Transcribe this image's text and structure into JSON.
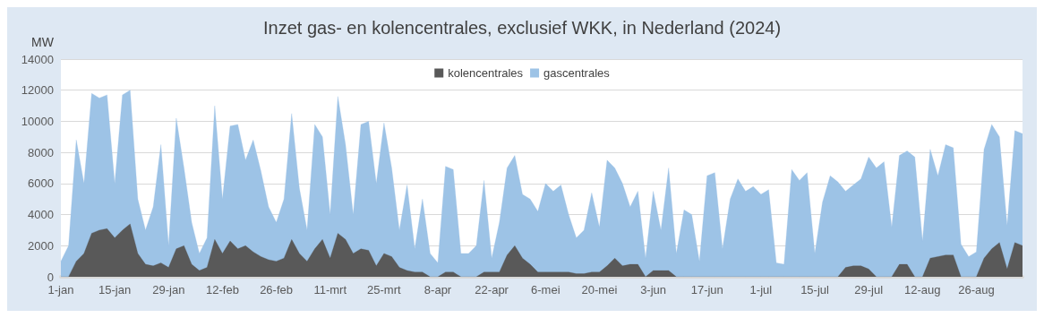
{
  "chart_data": {
    "type": "area",
    "title": "Inzet gas- en kolencentrales, exclusief WKK, in Nederland (2024)",
    "ylabel": "MW",
    "stacked": true,
    "legend": "top",
    "grid": "y",
    "x": [
      "2024-01-01",
      "2024-01-03",
      "2024-01-05",
      "2024-01-07",
      "2024-01-09",
      "2024-01-11",
      "2024-01-13",
      "2024-01-15",
      "2024-01-17",
      "2024-01-19",
      "2024-01-21",
      "2024-01-23",
      "2024-01-25",
      "2024-01-27",
      "2024-01-29",
      "2024-01-31",
      "2024-02-02",
      "2024-02-04",
      "2024-02-06",
      "2024-02-08",
      "2024-02-10",
      "2024-02-12",
      "2024-02-14",
      "2024-02-16",
      "2024-02-18",
      "2024-02-20",
      "2024-02-22",
      "2024-02-24",
      "2024-02-26",
      "2024-02-28",
      "2024-03-01",
      "2024-03-03",
      "2024-03-05",
      "2024-03-07",
      "2024-03-09",
      "2024-03-11",
      "2024-03-13",
      "2024-03-15",
      "2024-03-17",
      "2024-03-19",
      "2024-03-21",
      "2024-03-23",
      "2024-03-25",
      "2024-03-27",
      "2024-03-29",
      "2024-03-31",
      "2024-04-02",
      "2024-04-04",
      "2024-04-06",
      "2024-04-08",
      "2024-04-10",
      "2024-04-12",
      "2024-04-14",
      "2024-04-16",
      "2024-04-18",
      "2024-04-20",
      "2024-04-22",
      "2024-04-24",
      "2024-04-26",
      "2024-04-28",
      "2024-04-30",
      "2024-05-02",
      "2024-05-04",
      "2024-05-06",
      "2024-05-08",
      "2024-05-10",
      "2024-05-12",
      "2024-05-14",
      "2024-05-16",
      "2024-05-18",
      "2024-05-20",
      "2024-05-22",
      "2024-05-24",
      "2024-05-26",
      "2024-05-28",
      "2024-05-30",
      "2024-06-01",
      "2024-06-03",
      "2024-06-05",
      "2024-06-07",
      "2024-06-09",
      "2024-06-11",
      "2024-06-13",
      "2024-06-15",
      "2024-06-17",
      "2024-06-19",
      "2024-06-21",
      "2024-06-23",
      "2024-06-25",
      "2024-06-27",
      "2024-06-29",
      "2024-07-01",
      "2024-07-03",
      "2024-07-05",
      "2024-07-07",
      "2024-07-09",
      "2024-07-11",
      "2024-07-13",
      "2024-07-15",
      "2024-07-17",
      "2024-07-19",
      "2024-07-21",
      "2024-07-23",
      "2024-07-25",
      "2024-07-27",
      "2024-07-29",
      "2024-07-31",
      "2024-08-02",
      "2024-08-04",
      "2024-08-06",
      "2024-08-08",
      "2024-08-10",
      "2024-08-12",
      "2024-08-14",
      "2024-08-16",
      "2024-08-18",
      "2024-08-20",
      "2024-08-22",
      "2024-08-24",
      "2024-08-26",
      "2024-08-28",
      "2024-08-30",
      "2024-09-01",
      "2024-09-03",
      "2024-09-05",
      "2024-09-07"
    ],
    "series": [
      {
        "name": "kolencentrales",
        "color": "#595959",
        "values": [
          0,
          0,
          1000,
          1500,
          2800,
          3000,
          3100,
          2500,
          3000,
          3400,
          1500,
          800,
          700,
          900,
          600,
          1800,
          2000,
          800,
          400,
          600,
          2400,
          1500,
          2300,
          1800,
          2000,
          1600,
          1300,
          1100,
          1000,
          1200,
          2400,
          1500,
          1000,
          1800,
          2400,
          1200,
          2800,
          2400,
          1500,
          1800,
          1700,
          700,
          1500,
          1300,
          600,
          400,
          300,
          300,
          0,
          0,
          300,
          300,
          0,
          0,
          0,
          300,
          300,
          300,
          1400,
          2000,
          1200,
          800,
          300,
          300,
          300,
          300,
          300,
          200,
          200,
          300,
          300,
          700,
          1200,
          700,
          800,
          800,
          0,
          400,
          400,
          400,
          0,
          0,
          0,
          0,
          0,
          0,
          0,
          0,
          0,
          0,
          0,
          0,
          0,
          0,
          0,
          0,
          0,
          0,
          0,
          0,
          0,
          0,
          600,
          700,
          700,
          500,
          0,
          0,
          0,
          800,
          800,
          0,
          0,
          1200,
          1300,
          1400,
          1400,
          0,
          0,
          0,
          1200,
          1800,
          2200,
          500,
          2200,
          2000
        ]
      },
      {
        "name": "gascentrales",
        "color": "#9dc3e6",
        "values": [
          1000,
          2000,
          7800,
          4500,
          9000,
          8500,
          8600,
          3500,
          8700,
          8600,
          3500,
          2200,
          3800,
          7600,
          1400,
          8400,
          5000,
          2700,
          1100,
          1900,
          8600,
          3500,
          7400,
          8000,
          5500,
          7200,
          5500,
          3400,
          2500,
          3800,
          8100,
          4200,
          2000,
          8000,
          6600,
          2800,
          8800,
          6100,
          2500,
          8000,
          8300,
          5300,
          8400,
          5700,
          2400,
          5500,
          1500,
          4700,
          1500,
          900,
          6800,
          6600,
          1500,
          1500,
          2000,
          5900,
          900,
          3200,
          5600,
          5800,
          4100,
          4200,
          3900,
          5700,
          5200,
          5600,
          3700,
          2300,
          2800,
          5100,
          2900,
          6800,
          5800,
          5300,
          3700,
          4700,
          1200,
          5100,
          2600,
          6600,
          1500,
          4300,
          4000,
          1000,
          6500,
          6700,
          1800,
          5000,
          6300,
          5500,
          5800,
          5300,
          5600,
          900,
          800,
          6900,
          6200,
          6700,
          1500,
          4800,
          6500,
          6100,
          4900,
          5200,
          5600,
          7200,
          7000,
          7400,
          3200,
          7000,
          7300,
          7700,
          2300,
          7000,
          5200,
          7100,
          6900,
          2100,
          1300,
          1600,
          7000,
          8000,
          6800,
          2800,
          7200,
          7200
        ]
      }
    ],
    "xlim": [
      "2024-01-01",
      "2024-09-07"
    ],
    "xticks": [
      {
        "value": "2024-01-01",
        "label": "1-jan"
      },
      {
        "value": "2024-01-15",
        "label": "15-jan"
      },
      {
        "value": "2024-01-29",
        "label": "29-jan"
      },
      {
        "value": "2024-02-12",
        "label": "12-feb"
      },
      {
        "value": "2024-02-26",
        "label": "26-feb"
      },
      {
        "value": "2024-03-11",
        "label": "11-mrt"
      },
      {
        "value": "2024-03-25",
        "label": "25-mrt"
      },
      {
        "value": "2024-04-08",
        "label": "8-apr"
      },
      {
        "value": "2024-04-22",
        "label": "22-apr"
      },
      {
        "value": "2024-05-06",
        "label": "6-mei"
      },
      {
        "value": "2024-05-20",
        "label": "20-mei"
      },
      {
        "value": "2024-06-03",
        "label": "3-jun"
      },
      {
        "value": "2024-06-17",
        "label": "17-jun"
      },
      {
        "value": "2024-07-01",
        "label": "1-jul"
      },
      {
        "value": "2024-07-15",
        "label": "15-jul"
      },
      {
        "value": "2024-07-29",
        "label": "29-jul"
      },
      {
        "value": "2024-08-12",
        "label": "12-aug"
      },
      {
        "value": "2024-08-26",
        "label": "26-aug"
      }
    ],
    "ylim": [
      0,
      14000
    ],
    "yticks": [
      0,
      2000,
      4000,
      6000,
      8000,
      10000,
      12000,
      14000
    ]
  }
}
